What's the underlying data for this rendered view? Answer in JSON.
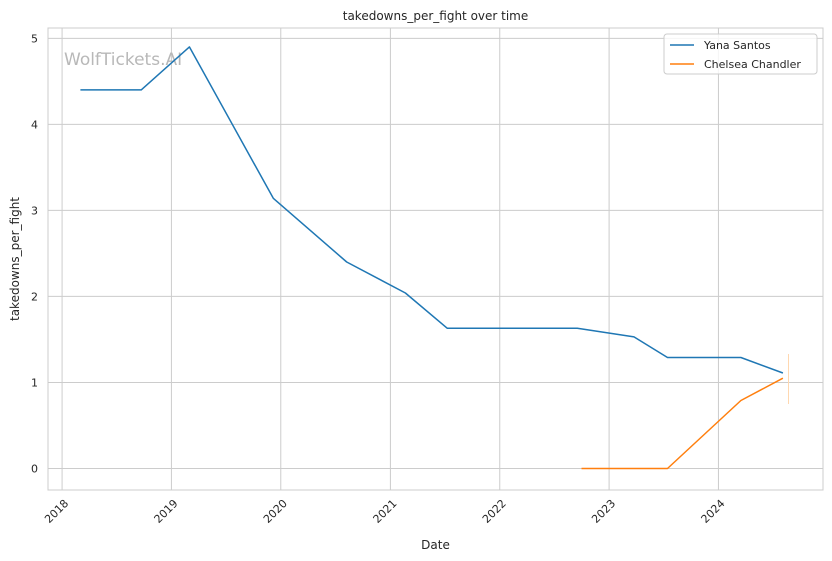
{
  "chart_data": {
    "type": "line",
    "title": "takedowns_per_fight over time",
    "xlabel": "Date",
    "ylabel": "takedowns_per_fight",
    "watermark": "WolfTickets.AI",
    "xlim": [
      "2017-11-15",
      "2024-12-15"
    ],
    "ylim": [
      -0.25,
      5.12
    ],
    "x_ticks": [
      "2018-01-01",
      "2019-01-01",
      "2020-01-01",
      "2021-01-01",
      "2022-01-01",
      "2023-01-01",
      "2024-01-01"
    ],
    "x_tick_labels": [
      "2018",
      "2019",
      "2020",
      "2021",
      "2022",
      "2023",
      "2024"
    ],
    "y_ticks": [
      0,
      1,
      2,
      3,
      4,
      5
    ],
    "y_tick_labels": [
      "0",
      "1",
      "2",
      "3",
      "4",
      "5"
    ],
    "grid": true,
    "legend_position": "top-right",
    "colors": {
      "Yana Santos": "#1f77b4",
      "Chelsea Chandler": "#ff7f0e",
      "grid": "#cccccc",
      "spine": "#cccccc"
    },
    "series": [
      {
        "name": "Yana Santos",
        "x": [
          "2018-03-03",
          "2018-09-22",
          "2019-03-02",
          "2019-12-07",
          "2020-08-08",
          "2021-02-20",
          "2021-07-10",
          "2022-09-17",
          "2023-03-25",
          "2023-07-15",
          "2024-03-16",
          "2024-08-03"
        ],
        "y": [
          4.4,
          4.4,
          4.9,
          3.14,
          2.4,
          2.04,
          1.63,
          1.63,
          1.53,
          1.29,
          1.29,
          1.11
        ]
      },
      {
        "name": "Chelsea Chandler",
        "x": [
          "2022-10-01",
          "2023-01-14",
          "2023-07-15",
          "2024-03-16",
          "2024-08-03"
        ],
        "y": [
          0.0,
          0.0,
          0.0,
          0.79,
          1.05
        ]
      }
    ]
  }
}
